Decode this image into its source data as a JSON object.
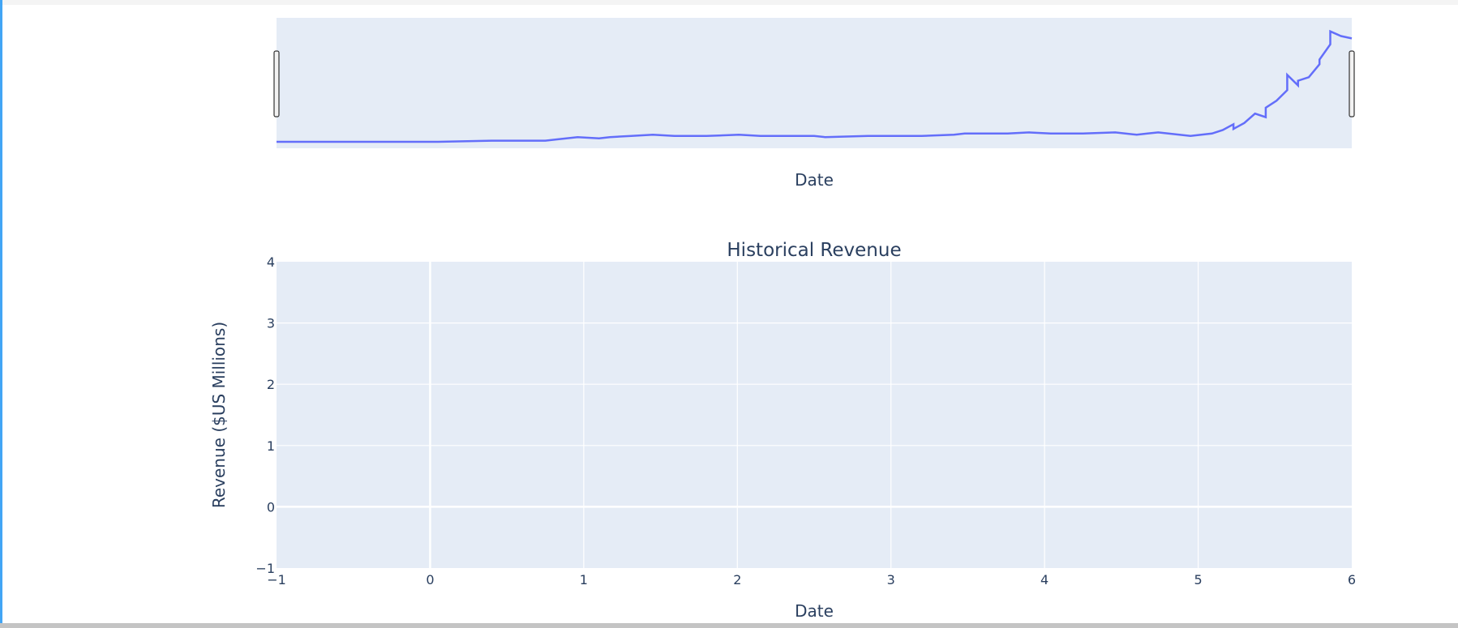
{
  "colors": {
    "plot_bg": "#e5ecf6",
    "grid": "#ffffff",
    "line": "#636efa",
    "text": "#2a3f5f",
    "accent_rule": "#42a5f5"
  },
  "chart_data": [
    {
      "type": "line",
      "role": "range-slider-overview",
      "title": "",
      "xlabel": "Date",
      "ylabel": "",
      "series": [
        {
          "x": [
            0.0,
            0.05,
            0.1,
            0.15,
            0.2,
            0.25,
            0.26,
            0.28,
            0.3,
            0.31,
            0.33,
            0.35,
            0.37,
            0.4,
            0.43,
            0.45,
            0.5,
            0.51,
            0.55,
            0.6,
            0.63,
            0.64,
            0.66,
            0.68,
            0.7,
            0.72,
            0.75,
            0.78,
            0.8,
            0.81,
            0.82,
            0.85,
            0.87,
            0.88,
            0.89,
            0.89,
            0.9,
            0.91,
            0.92,
            0.92,
            0.93,
            0.94,
            0.94,
            0.95,
            0.95,
            0.96,
            0.97,
            0.97,
            0.98,
            0.98,
            0.99,
            1.0
          ],
          "values": [
            0.0,
            0.0,
            0.0,
            0.0,
            0.01,
            0.01,
            0.02,
            0.04,
            0.03,
            0.04,
            0.05,
            0.06,
            0.05,
            0.05,
            0.06,
            0.05,
            0.05,
            0.04,
            0.05,
            0.05,
            0.06,
            0.07,
            0.07,
            0.07,
            0.08,
            0.07,
            0.07,
            0.08,
            0.06,
            0.07,
            0.08,
            0.05,
            0.07,
            0.1,
            0.15,
            0.11,
            0.16,
            0.24,
            0.21,
            0.29,
            0.35,
            0.44,
            0.57,
            0.48,
            0.52,
            0.55,
            0.66,
            0.7,
            0.83,
            0.94,
            0.9,
            0.88
          ]
        }
      ]
    },
    {
      "type": "line",
      "title": "Historical Revenue",
      "xlabel": "Date",
      "ylabel": "Revenue ($US Millions)",
      "xlim": [
        -1,
        6
      ],
      "ylim": [
        -1,
        4
      ],
      "xticks": [
        "−1",
        "0",
        "1",
        "2",
        "3",
        "4",
        "5",
        "6"
      ],
      "yticks": [
        "−1",
        "0",
        "1",
        "2",
        "3",
        "4"
      ],
      "grid": true,
      "series": []
    }
  ]
}
